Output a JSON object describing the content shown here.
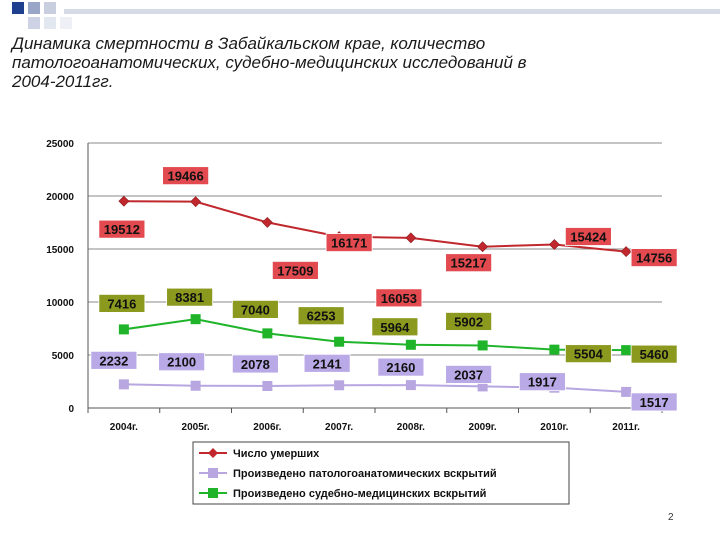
{
  "slide": {
    "title": "Динамика смертности в Забайкальском крае, количество патологоанатомических, судебно-медицинских исследований в 2004-2011гг.",
    "page_number": "2"
  },
  "colors": {
    "deaths": "#c0282d",
    "autopsy": "#b7a6e0",
    "forensic": "#1fb42a",
    "label_red": "#e34a4f",
    "label_olive": "#8b9a1e",
    "label_lavender": "#b9a9e6"
  },
  "chart_data": {
    "type": "line",
    "title": "",
    "xlabel": "",
    "ylabel": "",
    "categories": [
      "2004г.",
      "2005г.",
      "2006г.",
      "2007г.",
      "2008г.",
      "2009г.",
      "2010г.",
      "2011г."
    ],
    "ylim": [
      0,
      25000
    ],
    "yticks": [
      "0",
      "5000",
      "10000",
      "15000",
      "20000",
      "25000"
    ],
    "grid": true,
    "legend_position": "bottom",
    "series": [
      {
        "name": "Число умерших",
        "marker": "diamond",
        "values": [
          19512,
          19466,
          17509,
          16171,
          16053,
          15217,
          15424,
          14756
        ],
        "labels": [
          "19512",
          "19466",
          "17509",
          "16171",
          "16053",
          "15217",
          "15424",
          "14756"
        ]
      },
      {
        "name": "Произведено патологоанатомических вскрытий",
        "marker": "square",
        "values": [
          2232,
          2100,
          2078,
          2141,
          2160,
          2037,
          1917,
          1517
        ],
        "labels": [
          "2232",
          "2100",
          "2078",
          "2141",
          "2160",
          "2037",
          "1917",
          "1517"
        ]
      },
      {
        "name": "Произведено судебно-медицинских вскрытий",
        "marker": "square",
        "values": [
          7416,
          8381,
          7040,
          6253,
          5964,
          5902,
          5504,
          5460
        ],
        "labels": [
          "7416",
          "8381",
          "7040",
          "6253",
          "5964",
          "5902",
          "5504",
          "5460"
        ]
      }
    ]
  }
}
